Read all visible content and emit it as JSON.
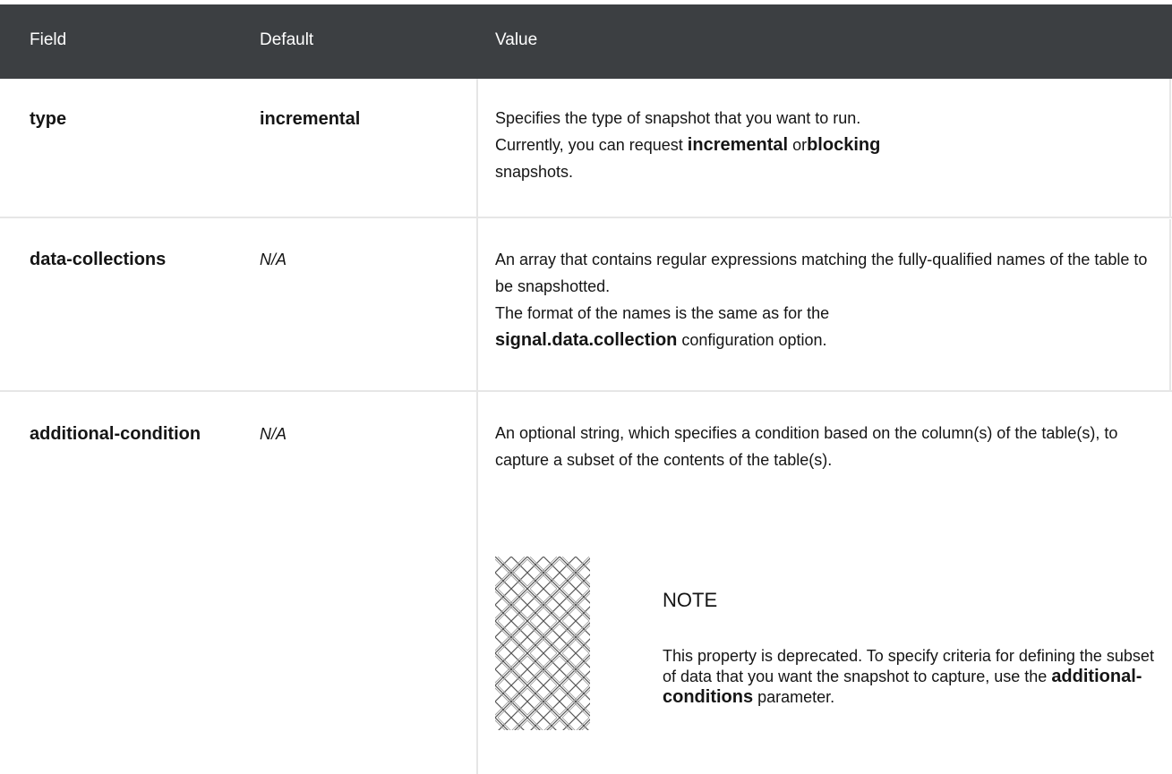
{
  "table": {
    "header": [
      "Field",
      "Default",
      "Value"
    ],
    "rows": [
      {
        "field": "type",
        "default": "incremental",
        "value": [
          "Specifies the type of snapshot that you want to run.",
          "Currently, you can request",
          "incremental",
          "or",
          "blocking",
          "snapshots."
        ]
      },
      {
        "field": "data-collections",
        "default": "N/A",
        "value": [
          "An array that contains regular expressions matching the fully-qualified names of the table to be snapshotted.",
          "The format of the names is the same as for the",
          "signal.data.collection",
          "configuration option."
        ]
      },
      {
        "field": "additional-condition",
        "default": "N/A",
        "value": [
          "An optional string, which specifies a condition based on the column(s) of the table(s), to capture a subset of the contents of the table(s)."
        ],
        "note": {
          "title": "NOTE",
          "text": [
            "This property is deprecated. To specify criteria for defining the subset of data that you want the snapshot to capture, use the",
            "additional-conditions",
            "parameter."
          ]
        }
      }
    ]
  }
}
